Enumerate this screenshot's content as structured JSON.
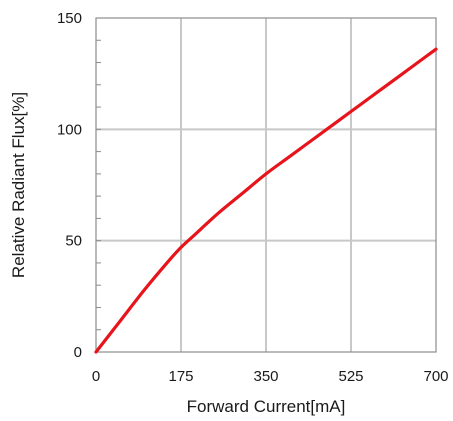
{
  "chart_data": {
    "type": "line",
    "title": "",
    "xlabel": "Forward Current[mA]",
    "ylabel": "Relative Radiant Flux[%]",
    "xlim": [
      0,
      700
    ],
    "ylim": [
      0,
      150
    ],
    "x_ticks": [
      0,
      175,
      350,
      525,
      700
    ],
    "y_ticks": [
      0,
      50,
      100,
      150
    ],
    "x_tick_labels": [
      "0",
      "175",
      "350",
      "525",
      "700"
    ],
    "y_tick_labels": [
      "0",
      "50",
      "100",
      "150"
    ],
    "grid": true,
    "legend": "none",
    "series": [
      {
        "color": "#e8141b",
        "x": [
          0,
          50,
          100,
          150,
          175,
          200,
          250,
          300,
          350,
          400,
          450,
          500,
          550,
          600,
          650,
          700
        ],
        "y": [
          0,
          14,
          28,
          41,
          47,
          52,
          62,
          71,
          80,
          88,
          96,
          104,
          112,
          120,
          128,
          136
        ]
      }
    ]
  }
}
